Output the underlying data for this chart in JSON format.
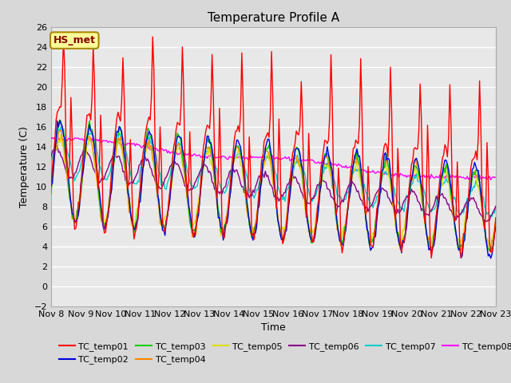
{
  "title": "Temperature Profile A",
  "xlabel": "Time",
  "ylabel": "Temperature (C)",
  "ylim": [
    -2,
    26
  ],
  "yticks": [
    -2,
    0,
    2,
    4,
    6,
    8,
    10,
    12,
    14,
    16,
    18,
    20,
    22,
    24,
    26
  ],
  "xtick_labels": [
    "Nov 8",
    "Nov 9",
    "Nov 10",
    "Nov 11",
    "Nov 12",
    "Nov 13",
    "Nov 14",
    "Nov 15",
    "Nov 16",
    "Nov 17",
    "Nov 18",
    "Nov 19",
    "Nov 20",
    "Nov 21",
    "Nov 22",
    "Nov 23"
  ],
  "series_colors": {
    "TC_temp01": "#ff0000",
    "TC_temp02": "#0000dd",
    "TC_temp03": "#00cc00",
    "TC_temp04": "#ff8800",
    "TC_temp05": "#dddd00",
    "TC_temp06": "#880088",
    "TC_temp07": "#00cccc",
    "TC_temp08": "#ff00ff"
  },
  "annotation_label": "HS_met",
  "annotation_color": "#880000",
  "annotation_bg": "#ffff99",
  "annotation_border": "#aa8800",
  "background_color": "#d8d8d8",
  "plot_bg_color": "#e8e8e8",
  "grid_color": "#ffffff",
  "title_fontsize": 11,
  "tick_fontsize": 8,
  "legend_fontsize": 8
}
